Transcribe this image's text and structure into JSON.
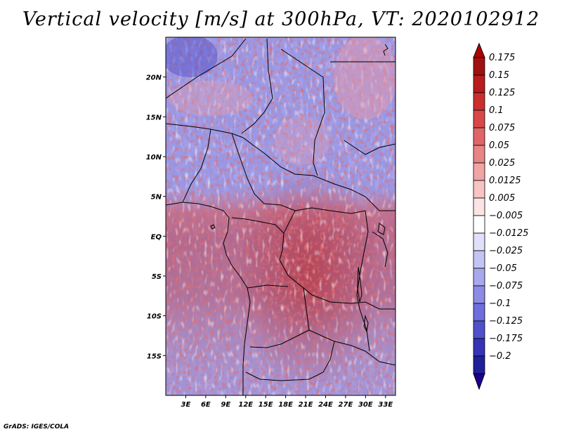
{
  "title": "Vertical velocity [m/s] at 300hPa, VT: 2020102912",
  "credit": "GrADS: IGES/COLA",
  "map": {
    "lat_labels": [
      {
        "label": "20N",
        "lat": 20
      },
      {
        "label": "15N",
        "lat": 15
      },
      {
        "label": "10N",
        "lat": 10
      },
      {
        "label": "5N",
        "lat": 5
      },
      {
        "label": "EQ",
        "lat": 0
      },
      {
        "label": "5S",
        "lat": -5
      },
      {
        "label": "10S",
        "lat": -10
      },
      {
        "label": "15S",
        "lat": -15
      }
    ],
    "lon_labels": [
      {
        "label": "3E",
        "lon": 3
      },
      {
        "label": "6E",
        "lon": 6
      },
      {
        "label": "9E",
        "lon": 9
      },
      {
        "label": "12E",
        "lon": 12
      },
      {
        "label": "15E",
        "lon": 15
      },
      {
        "label": "18E",
        "lon": 18
      },
      {
        "label": "21E",
        "lon": 21
      },
      {
        "label": "24E",
        "lon": 24
      },
      {
        "label": "27E",
        "lon": 27
      },
      {
        "label": "30E",
        "lon": 30
      },
      {
        "label": "33E",
        "lon": 33
      }
    ],
    "lon_range": [
      0,
      34.5
    ],
    "lat_range": [
      -20,
      25
    ]
  },
  "colorbar": {
    "levels": [
      {
        "label": "0.175",
        "color": "#a01010"
      },
      {
        "label": "0.15",
        "color": "#b81c1c"
      },
      {
        "label": "0.125",
        "color": "#cc2e2e"
      },
      {
        "label": "0.1",
        "color": "#d84848"
      },
      {
        "label": "0.075",
        "color": "#e06666"
      },
      {
        "label": "0.05",
        "color": "#e88484"
      },
      {
        "label": "0.025",
        "color": "#f0a4a4"
      },
      {
        "label": "0.0125",
        "color": "#f6c4c4"
      },
      {
        "label": "0.005",
        "color": "#fce4e4"
      },
      {
        "label": "−0.005",
        "color": "#ffffff"
      },
      {
        "label": "−0.0125",
        "color": "#e0e0fa"
      },
      {
        "label": "−0.025",
        "color": "#c4c4f4"
      },
      {
        "label": "−0.05",
        "color": "#a8a8ee"
      },
      {
        "label": "−0.075",
        "color": "#8c8ce6"
      },
      {
        "label": "−0.1",
        "color": "#6e6edc"
      },
      {
        "label": "−0.125",
        "color": "#5050cc"
      },
      {
        "label": "−0.175",
        "color": "#3434b4"
      },
      {
        "label": "−0.2",
        "color": "#20209a"
      }
    ],
    "top_color": "#b00000",
    "bottom_color": "#1a0090"
  }
}
